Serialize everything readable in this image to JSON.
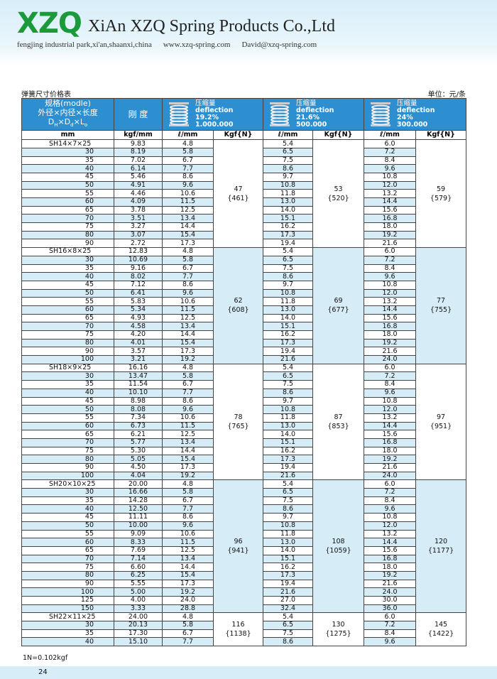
{
  "header": {
    "logo": "XZQ",
    "company": "XiAn XZQ Spring Products Co.,Ltd",
    "address": "fengjing industrial park,xi'an,shaanxi,china",
    "website": "www.xzq-spring.com",
    "email": "David@xzq-spring.com"
  },
  "table": {
    "title": "弹簧尺寸价格表",
    "unit": "单位：元/条",
    "spec_header": {
      "lines": [
        "规格(modle)",
        "外径×内径×长度"
      ],
      "dims": [
        {
          "t": "D",
          "sub": "H"
        },
        {
          "t": "×D",
          "sub": "d"
        },
        {
          "t": "×L",
          "sub": "o"
        }
      ]
    },
    "stiffness_header": "刚  度",
    "deflection_headers": [
      [
        "压缩量",
        "deflection",
        "19.2%",
        "1.000.000"
      ],
      [
        "压缩量",
        "deflection",
        "21.6%",
        "500.000"
      ],
      [
        "压缩量",
        "deflection",
        "24%",
        "300.000"
      ]
    ],
    "sub_headers": [
      "mm",
      "kgf/mm",
      "ℓ/mm",
      "Kgf{N}",
      "ℓ/mm",
      "Kgf{N}",
      "ℓ/mm",
      "Kgf{N}"
    ],
    "groups": [
      {
        "loads": [
          [
            "47",
            "{461}"
          ],
          [
            "53",
            "{520}"
          ],
          [
            "59",
            "{579}"
          ]
        ],
        "rows": [
          [
            "SH14×7×25",
            "9.83",
            "4.8",
            "5.4",
            "6.0"
          ],
          [
            "30",
            "8.19",
            "5.8",
            "6.5",
            "7.2"
          ],
          [
            "35",
            "7.02",
            "6.7",
            "7.5",
            "8.4"
          ],
          [
            "40",
            "6.14",
            "7.7",
            "8.6",
            "9.6"
          ],
          [
            "45",
            "5.46",
            "8.6",
            "9.7",
            "10.8"
          ],
          [
            "50",
            "4.91",
            "9.6",
            "10.8",
            "12.0"
          ],
          [
            "55",
            "4.46",
            "10.6",
            "11.8",
            "13.2"
          ],
          [
            "60",
            "4.09",
            "11.5",
            "13.0",
            "14.4"
          ],
          [
            "65",
            "3.78",
            "12.5",
            "14.0",
            "15.6"
          ],
          [
            "70",
            "3.51",
            "13.4",
            "15.1",
            "16.8"
          ],
          [
            "75",
            "3.27",
            "14.4",
            "16.2",
            "18.0"
          ],
          [
            "80",
            "3.07",
            "15.4",
            "17.3",
            "19.2"
          ],
          [
            "90",
            "2.72",
            "17.3",
            "19.4",
            "21.6"
          ]
        ]
      },
      {
        "loads": [
          [
            "62",
            "{608}"
          ],
          [
            "69",
            "{677}"
          ],
          [
            "77",
            "{755}"
          ]
        ],
        "rows": [
          [
            "SH16×8×25",
            "12.83",
            "4.8",
            "5.4",
            "6.0"
          ],
          [
            "30",
            "10.69",
            "5.8",
            "6.5",
            "7.2"
          ],
          [
            "35",
            "9.16",
            "6.7",
            "7.5",
            "8.4"
          ],
          [
            "40",
            "8.02",
            "7.7",
            "8.6",
            "9.6"
          ],
          [
            "45",
            "7.12",
            "8.6",
            "9.7",
            "10.8"
          ],
          [
            "50",
            "6.41",
            "9.6",
            "10.8",
            "12.0"
          ],
          [
            "55",
            "5.83",
            "10.6",
            "11.8",
            "13.2"
          ],
          [
            "60",
            "5.34",
            "11.5",
            "13.0",
            "14.4"
          ],
          [
            "65",
            "4.93",
            "12.5",
            "14.0",
            "15.6"
          ],
          [
            "70",
            "4.58",
            "13.4",
            "15.1",
            "16.8"
          ],
          [
            "75",
            "4.20",
            "14.4",
            "16.2",
            "18.0"
          ],
          [
            "80",
            "4.01",
            "15.4",
            "17.3",
            "19.2"
          ],
          [
            "90",
            "3.57",
            "17.3",
            "19.4",
            "21.6"
          ],
          [
            "100",
            "3.21",
            "19.2",
            "21.6",
            "24.0"
          ]
        ]
      },
      {
        "loads": [
          [
            "78",
            "{765}"
          ],
          [
            "87",
            "{853}"
          ],
          [
            "97",
            "{951}"
          ]
        ],
        "rows": [
          [
            "SH18×9×25",
            "16.16",
            "4.8",
            "5.4",
            "6.0"
          ],
          [
            "30",
            "13.47",
            "5.8",
            "6.5",
            "7.2"
          ],
          [
            "35",
            "11.54",
            "6.7",
            "7.5",
            "8.4"
          ],
          [
            "40",
            "10.10",
            "7.7",
            "8.6",
            "9.6"
          ],
          [
            "45",
            "8.98",
            "8.6",
            "9.7",
            "10.8"
          ],
          [
            "50",
            "8.08",
            "9.6",
            "10.8",
            "12.0"
          ],
          [
            "55",
            "7.34",
            "10.6",
            "11.8",
            "13.2"
          ],
          [
            "60",
            "6.73",
            "11.5",
            "13.0",
            "14.4"
          ],
          [
            "65",
            "6.21",
            "12.5",
            "14.0",
            "15.6"
          ],
          [
            "70",
            "5.77",
            "13.4",
            "15.1",
            "16.8"
          ],
          [
            "75",
            "5.30",
            "14.4",
            "16.2",
            "18.0"
          ],
          [
            "80",
            "5.05",
            "15.4",
            "17.3",
            "19.2"
          ],
          [
            "90",
            "4.50",
            "17.3",
            "19.4",
            "21.6"
          ],
          [
            "100",
            "4.04",
            "19.2",
            "21.6",
            "24.0"
          ]
        ]
      },
      {
        "loads": [
          [
            "96",
            "{941}"
          ],
          [
            "108",
            "{1059}"
          ],
          [
            "120",
            "{1177}"
          ]
        ],
        "rows": [
          [
            "SH20×10×25",
            "20.00",
            "4.8",
            "5.4",
            "6.0"
          ],
          [
            "30",
            "16.66",
            "5.8",
            "6.5",
            "7.2"
          ],
          [
            "35",
            "14.28",
            "6.7",
            "7.5",
            "8.4"
          ],
          [
            "40",
            "12.50",
            "7.7",
            "8.6",
            "9.6"
          ],
          [
            "45",
            "11.11",
            "8.6",
            "9.7",
            "10.8"
          ],
          [
            "50",
            "10.00",
            "9.6",
            "10.8",
            "12.0"
          ],
          [
            "55",
            "9.09",
            "10.6",
            "11.8",
            "13.2"
          ],
          [
            "60",
            "8.33",
            "11.5",
            "13.0",
            "14.4"
          ],
          [
            "65",
            "7.69",
            "12.5",
            "14.0",
            "15.6"
          ],
          [
            "70",
            "7.14",
            "13.4",
            "15.1",
            "16.8"
          ],
          [
            "75",
            "6.60",
            "14.4",
            "16.2",
            "18.0"
          ],
          [
            "80",
            "6.25",
            "15.4",
            "17.3",
            "19.2"
          ],
          [
            "90",
            "5.55",
            "17.3",
            "19.4",
            "21.6"
          ],
          [
            "100",
            "5.00",
            "19.2",
            "21.6",
            "24.0"
          ],
          [
            "125",
            "4.00",
            "24.0",
            "27.0",
            "30.0"
          ],
          [
            "150",
            "3.33",
            "28.8",
            "32.4",
            "36.0"
          ]
        ]
      },
      {
        "loads": [
          [
            "116",
            "{1138}"
          ],
          [
            "130",
            "{1275}"
          ],
          [
            "145",
            "{1422}"
          ]
        ],
        "rows": [
          [
            "SH22×11×25",
            "24.00",
            "4.8",
            "5.4",
            "6.0"
          ],
          [
            "30",
            "20.13",
            "5.8",
            "6.5",
            "7.2"
          ],
          [
            "35",
            "17.30",
            "6.7",
            "7.5",
            "8.4"
          ],
          [
            "40",
            "15.10",
            "7.7",
            "8.6",
            "9.6"
          ]
        ]
      }
    ],
    "footnote": "1N=0.102kgf"
  },
  "page_number": "24"
}
